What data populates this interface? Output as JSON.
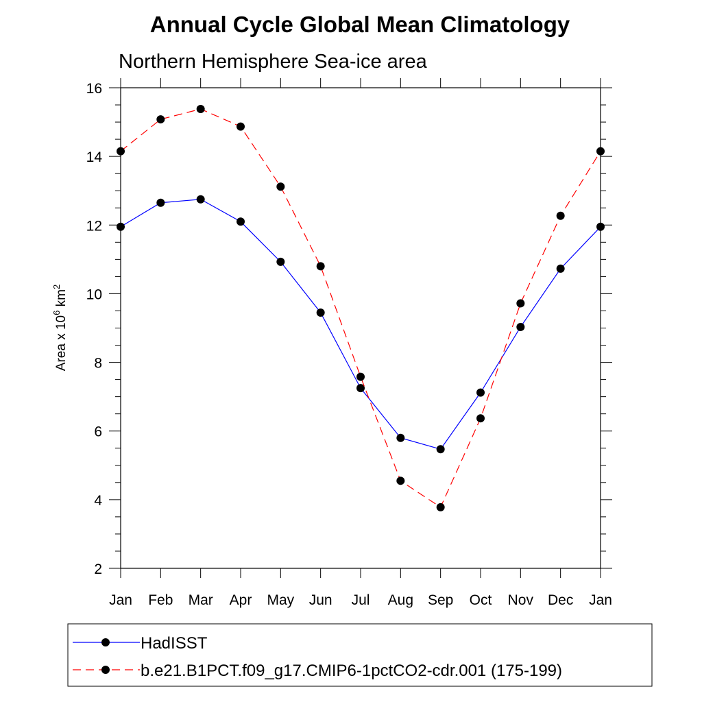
{
  "chart_data": {
    "type": "line",
    "title": "Annual Cycle Global Mean Climatology",
    "subtitle": "Northern Hemisphere Sea-ice area",
    "ylabel": {
      "prefix": "Area x 10",
      "exponent": "6",
      "unit": " km",
      "unit_exponent": "2"
    },
    "categories": [
      "Jan",
      "Feb",
      "Mar",
      "Apr",
      "May",
      "Jun",
      "Jul",
      "Aug",
      "Sep",
      "Oct",
      "Nov",
      "Dec",
      "Jan"
    ],
    "ylim": [
      2,
      16
    ],
    "yticks": [
      2,
      4,
      6,
      8,
      10,
      12,
      14,
      16
    ],
    "y_minor_step": 0.5,
    "grid": false,
    "legend_position": "bottom",
    "series": [
      {
        "name": "HadISST",
        "style": "solid",
        "color": "#0000ff",
        "values": [
          11.95,
          12.65,
          12.75,
          12.1,
          10.93,
          9.45,
          7.25,
          5.8,
          5.47,
          7.12,
          9.03,
          10.73,
          11.95
        ]
      },
      {
        "name": "b.e21.B1PCT.f09_g17.CMIP6-1pctCO2-cdr.001 (175-199)",
        "style": "dashed",
        "color": "#ff0000",
        "values": [
          14.15,
          15.08,
          15.38,
          14.87,
          13.12,
          10.8,
          7.58,
          4.55,
          3.78,
          6.37,
          9.72,
          12.27,
          14.15
        ]
      }
    ]
  }
}
